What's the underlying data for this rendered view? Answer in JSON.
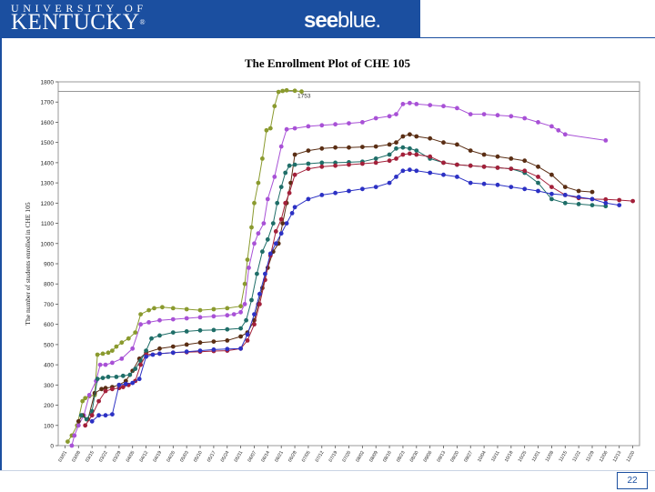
{
  "header": {
    "university": "UNIVERSITY OF",
    "kentucky": "KENTUCKY",
    "trademark": "®",
    "see": "see",
    "blue": "blue."
  },
  "footer": {
    "page_number": "22"
  },
  "colors": {
    "banner": "#1b4fa0",
    "olive": "#8a9a2e",
    "purple": "#a851d6",
    "brown": "#5a2e14",
    "teal": "#1f6e68",
    "red": "#a3203a",
    "blue": "#2c31c4"
  },
  "chart_data": {
    "type": "line",
    "title": "The Enrollment Plot of CHE 105",
    "xlabel": "",
    "ylabel": "The number of students enrolled in CHE 105",
    "ylim": [
      0,
      1800
    ],
    "yticks": [
      0,
      100,
      200,
      300,
      400,
      500,
      600,
      700,
      800,
      900,
      1000,
      1100,
      1200,
      1300,
      1400,
      1500,
      1600,
      1700,
      1800
    ],
    "x_tick_labels": [
      "03/01",
      "03/08",
      "03/15",
      "03/22",
      "03/29",
      "04/05",
      "04/12",
      "04/19",
      "04/26",
      "05/03",
      "05/10",
      "05/17",
      "05/24",
      "05/31",
      "06/07",
      "06/14",
      "06/21",
      "06/28",
      "07/05",
      "07/12",
      "07/19",
      "07/26",
      "08/02",
      "08/09",
      "08/16",
      "08/23",
      "08/30",
      "09/06",
      "09/13",
      "09/20",
      "09/27",
      "10/04",
      "10/11",
      "10/18",
      "10/25",
      "11/01",
      "11/08",
      "11/15",
      "11/22",
      "11/29",
      "12/06",
      "12/13",
      "12/20"
    ],
    "reference_line": {
      "value": 1753,
      "label": "1753"
    },
    "grid": false,
    "series": [
      {
        "color": "#8a9a2e",
        "x": [
          0.2,
          0.5,
          0.9,
          1.3,
          1.5,
          1.8,
          2.2,
          2.4,
          2.8,
          3.2,
          3.5,
          3.8,
          4.2,
          4.7,
          5.2,
          5.6,
          6.2,
          6.6,
          7.2,
          8,
          9,
          10,
          11,
          12,
          13,
          13.3,
          13.5,
          13.8,
          14,
          14.3,
          14.6,
          14.9,
          15.2,
          15.5,
          15.8,
          16.1,
          16.4,
          17,
          17.5
        ],
        "y": [
          20,
          50,
          100,
          220,
          235,
          245,
          250,
          450,
          455,
          460,
          470,
          490,
          510,
          530,
          560,
          650,
          670,
          680,
          685,
          680,
          675,
          670,
          675,
          680,
          690,
          800,
          920,
          1080,
          1200,
          1300,
          1420,
          1560,
          1570,
          1680,
          1750,
          1755,
          1758,
          1756,
          1752
        ]
      },
      {
        "color": "#a851d6",
        "x": [
          0.5,
          0.7,
          1,
          1.4,
          1.8,
          2.3,
          2.6,
          3,
          3.5,
          4.2,
          5,
          5.6,
          6.2,
          7,
          8,
          9,
          10,
          11,
          12,
          12.5,
          13,
          13.3,
          13.6,
          14,
          14.3,
          14.7,
          15,
          15.5,
          16,
          16.4,
          17,
          18,
          19,
          20,
          21,
          22,
          23,
          24,
          24.5,
          25,
          25.5,
          26,
          27,
          28,
          29,
          30,
          31,
          32,
          33,
          34,
          35,
          36,
          36.5,
          37,
          40
        ],
        "y": [
          0,
          50,
          100,
          150,
          250,
          320,
          400,
          400,
          410,
          430,
          480,
          600,
          610,
          620,
          625,
          630,
          635,
          640,
          645,
          650,
          660,
          700,
          880,
          1000,
          1050,
          1100,
          1220,
          1330,
          1480,
          1565,
          1570,
          1580,
          1585,
          1590,
          1595,
          1600,
          1620,
          1630,
          1640,
          1690,
          1695,
          1690,
          1685,
          1680,
          1670,
          1640,
          1640,
          1635,
          1630,
          1620,
          1600,
          1580,
          1560,
          1540,
          1510
        ]
      },
      {
        "color": "#5a2e14",
        "x": [
          1,
          1.3,
          1.7,
          2.2,
          2.7,
          3,
          3.5,
          4,
          4.5,
          5,
          5.5,
          6,
          7,
          8,
          9,
          10,
          11,
          12,
          13,
          13.5,
          14,
          14.3,
          14.6,
          15,
          15.4,
          15.8,
          16.1,
          16.4,
          16.7,
          17,
          18,
          19,
          20,
          21,
          22,
          23,
          24,
          24.5,
          25,
          25.5,
          26,
          27,
          28,
          29,
          30,
          31,
          32,
          33,
          34,
          35,
          36,
          37,
          38,
          39
        ],
        "y": [
          120,
          150,
          130,
          260,
          280,
          285,
          290,
          300,
          320,
          370,
          430,
          460,
          480,
          490,
          500,
          510,
          515,
          520,
          540,
          560,
          620,
          700,
          780,
          880,
          960,
          1000,
          1100,
          1200,
          1300,
          1440,
          1460,
          1470,
          1475,
          1475,
          1478,
          1480,
          1490,
          1500,
          1530,
          1540,
          1530,
          1520,
          1500,
          1490,
          1460,
          1440,
          1430,
          1420,
          1410,
          1380,
          1340,
          1280,
          1260,
          1255
        ]
      },
      {
        "color": "#1f6e68",
        "x": [
          1.2,
          1.6,
          2,
          2.4,
          2.8,
          3.2,
          3.8,
          4.3,
          4.8,
          5.2,
          5.6,
          6,
          6.4,
          7,
          8,
          9,
          10,
          11,
          12,
          13,
          13.4,
          13.8,
          14.2,
          14.6,
          15,
          15.4,
          15.7,
          16,
          16.3,
          16.6,
          17,
          18,
          19,
          20,
          21,
          22,
          23,
          24,
          24.5,
          25,
          25.5,
          26,
          27,
          28,
          29,
          30,
          31,
          32,
          33,
          34,
          35,
          36,
          37,
          38,
          39,
          40
        ],
        "y": [
          150,
          130,
          170,
          330,
          335,
          340,
          340,
          345,
          350,
          380,
          420,
          470,
          530,
          545,
          560,
          565,
          570,
          572,
          575,
          580,
          620,
          720,
          850,
          960,
          1020,
          1100,
          1200,
          1280,
          1350,
          1385,
          1390,
          1395,
          1400,
          1400,
          1402,
          1405,
          1420,
          1440,
          1470,
          1475,
          1470,
          1460,
          1420,
          1400,
          1390,
          1385,
          1380,
          1375,
          1370,
          1350,
          1300,
          1220,
          1200,
          1195,
          1190,
          1185
        ]
      },
      {
        "color": "#a3203a",
        "x": [
          1.5,
          2,
          2.5,
          3,
          3.5,
          4,
          4.3,
          4.7,
          5.2,
          5.6,
          6,
          7,
          8,
          9,
          10,
          11,
          12,
          13,
          13.5,
          14,
          14.4,
          14.8,
          15.2,
          15.6,
          16,
          16.3,
          16.6,
          17,
          18,
          19,
          20,
          21,
          22,
          23,
          24,
          24.5,
          25,
          25.5,
          26,
          27,
          28,
          29,
          30,
          31,
          32,
          33,
          34,
          35,
          36,
          37,
          38,
          39,
          40,
          41,
          42
        ],
        "y": [
          100,
          150,
          220,
          270,
          280,
          285,
          290,
          300,
          320,
          400,
          450,
          455,
          460,
          462,
          465,
          468,
          470,
          480,
          520,
          600,
          700,
          820,
          940,
          1060,
          1120,
          1200,
          1250,
          1340,
          1370,
          1380,
          1385,
          1390,
          1395,
          1400,
          1410,
          1420,
          1440,
          1445,
          1440,
          1430,
          1400,
          1390,
          1385,
          1380,
          1375,
          1370,
          1360,
          1330,
          1280,
          1240,
          1225,
          1220,
          1218,
          1215,
          1210
        ]
      },
      {
        "color": "#2c31c4",
        "x": [
          2,
          2.5,
          3,
          3.5,
          4,
          4.5,
          5,
          5.5,
          6,
          6.5,
          7,
          8,
          9,
          10,
          11,
          12,
          13,
          13.5,
          14,
          14.4,
          14.8,
          15.2,
          15.6,
          16,
          16.4,
          16.8,
          17,
          18,
          19,
          20,
          21,
          22,
          23,
          24,
          24.5,
          25,
          25.5,
          26,
          27,
          28,
          29,
          30,
          31,
          32,
          33,
          34,
          35,
          36,
          37,
          38,
          39,
          40,
          41
        ],
        "y": [
          120,
          150,
          150,
          155,
          300,
          305,
          310,
          330,
          440,
          450,
          455,
          460,
          465,
          470,
          475,
          478,
          480,
          550,
          650,
          750,
          850,
          950,
          1000,
          1050,
          1100,
          1150,
          1180,
          1220,
          1240,
          1250,
          1260,
          1270,
          1280,
          1300,
          1330,
          1360,
          1365,
          1360,
          1350,
          1340,
          1330,
          1300,
          1295,
          1290,
          1280,
          1270,
          1260,
          1245,
          1240,
          1230,
          1220,
          1200,
          1190
        ]
      }
    ]
  }
}
